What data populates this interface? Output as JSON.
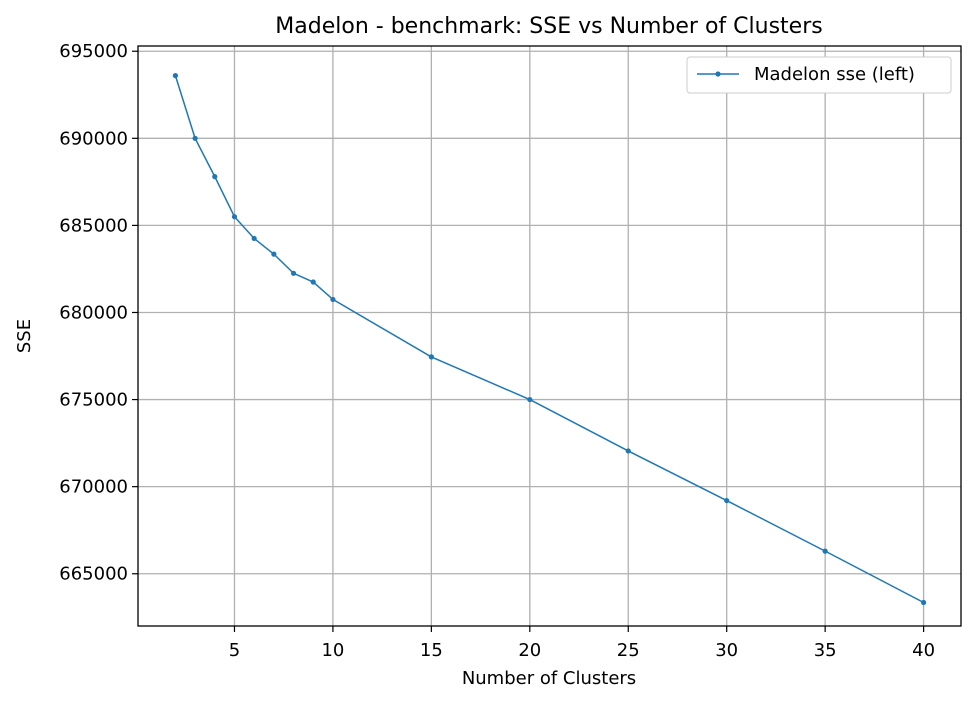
{
  "chart_data": {
    "type": "line",
    "title": "Madelon - benchmark: SSE vs Number of Clusters",
    "xlabel": "Number of Clusters",
    "ylabel": "SSE",
    "xlim": [
      0.1,
      41.9
    ],
    "ylim": [
      662000,
      695300
    ],
    "xticks": [
      5,
      10,
      15,
      20,
      25,
      30,
      35,
      40
    ],
    "yticks": [
      665000,
      670000,
      675000,
      680000,
      685000,
      690000,
      695000
    ],
    "grid": true,
    "legend_position": "top-right",
    "series": [
      {
        "name": "Madelon sse (left)",
        "color": "#1f77b4",
        "x": [
          2,
          3,
          4,
          5,
          6,
          7,
          8,
          9,
          10,
          15,
          20,
          25,
          30,
          35,
          40
        ],
        "y": [
          693600,
          690000,
          687800,
          685500,
          684250,
          683350,
          682250,
          681750,
          680750,
          677450,
          675000,
          672050,
          669200,
          666300,
          663350
        ]
      }
    ]
  }
}
